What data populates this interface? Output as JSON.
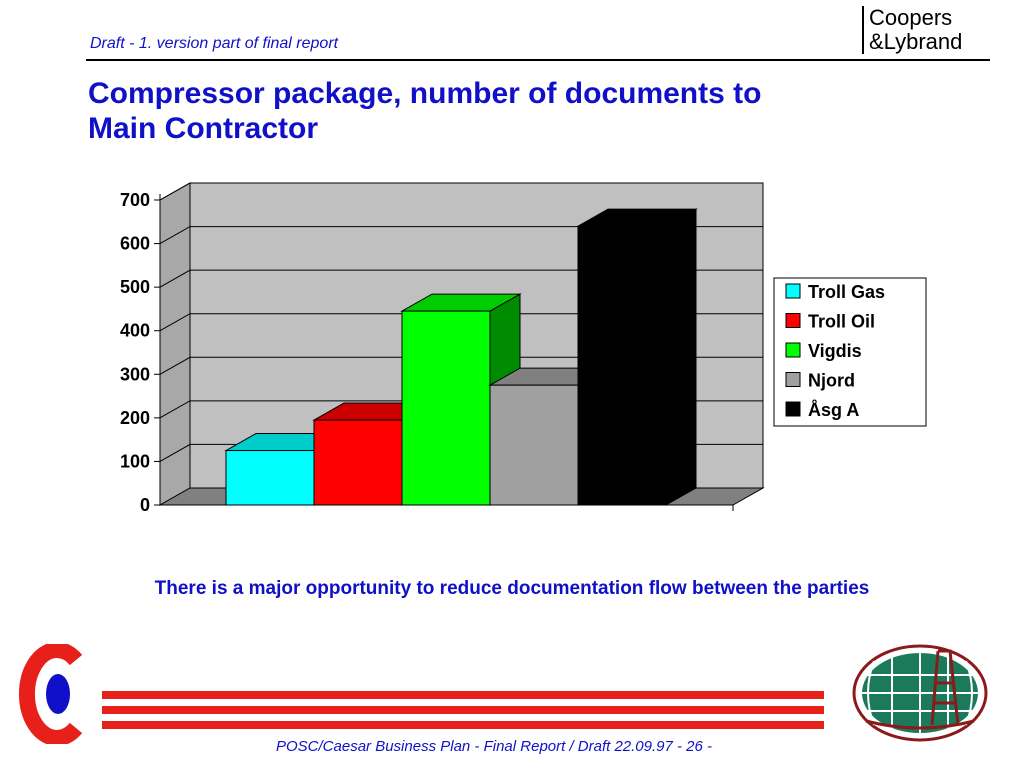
{
  "header": {
    "note": "Draft - 1. version part of final report",
    "brand_line1": "Coopers",
    "brand_line2": "&Lybrand"
  },
  "title": "Compressor package, number of documents to\n Main Contractor",
  "conclusion": "There is a major opportunity to reduce documentation flow between the parties",
  "footer": "POSC/Caesar Business Plan - Final Report / Draft  22.09.97 - 26 -",
  "colors": {
    "text_blue": "#1010c8",
    "stripe_red": "#e8201a",
    "plot_background": "#c0c0c0",
    "floor": "#808080"
  },
  "chart_data": {
    "type": "bar",
    "style": "3d-column",
    "categories": [
      "Troll Gas",
      "Troll Oil",
      "Vigdis",
      "Njord",
      "Åsg A"
    ],
    "series": [
      {
        "name": "Troll Gas",
        "value": 125,
        "color": "#00ffff"
      },
      {
        "name": "Troll Oil",
        "value": 195,
        "color": "#ff0000"
      },
      {
        "name": "Vigdis",
        "value": 445,
        "color": "#00ff00"
      },
      {
        "name": "Njord",
        "value": 275,
        "color": "#a0a0a0"
      },
      {
        "name": "Åsg A",
        "value": 640,
        "color": "#000000"
      }
    ],
    "yticks": [
      "0",
      "100",
      "200",
      "300",
      "400",
      "500",
      "600",
      "700"
    ],
    "ylim": [
      0,
      700
    ],
    "grid": true,
    "legend_position": "right"
  }
}
